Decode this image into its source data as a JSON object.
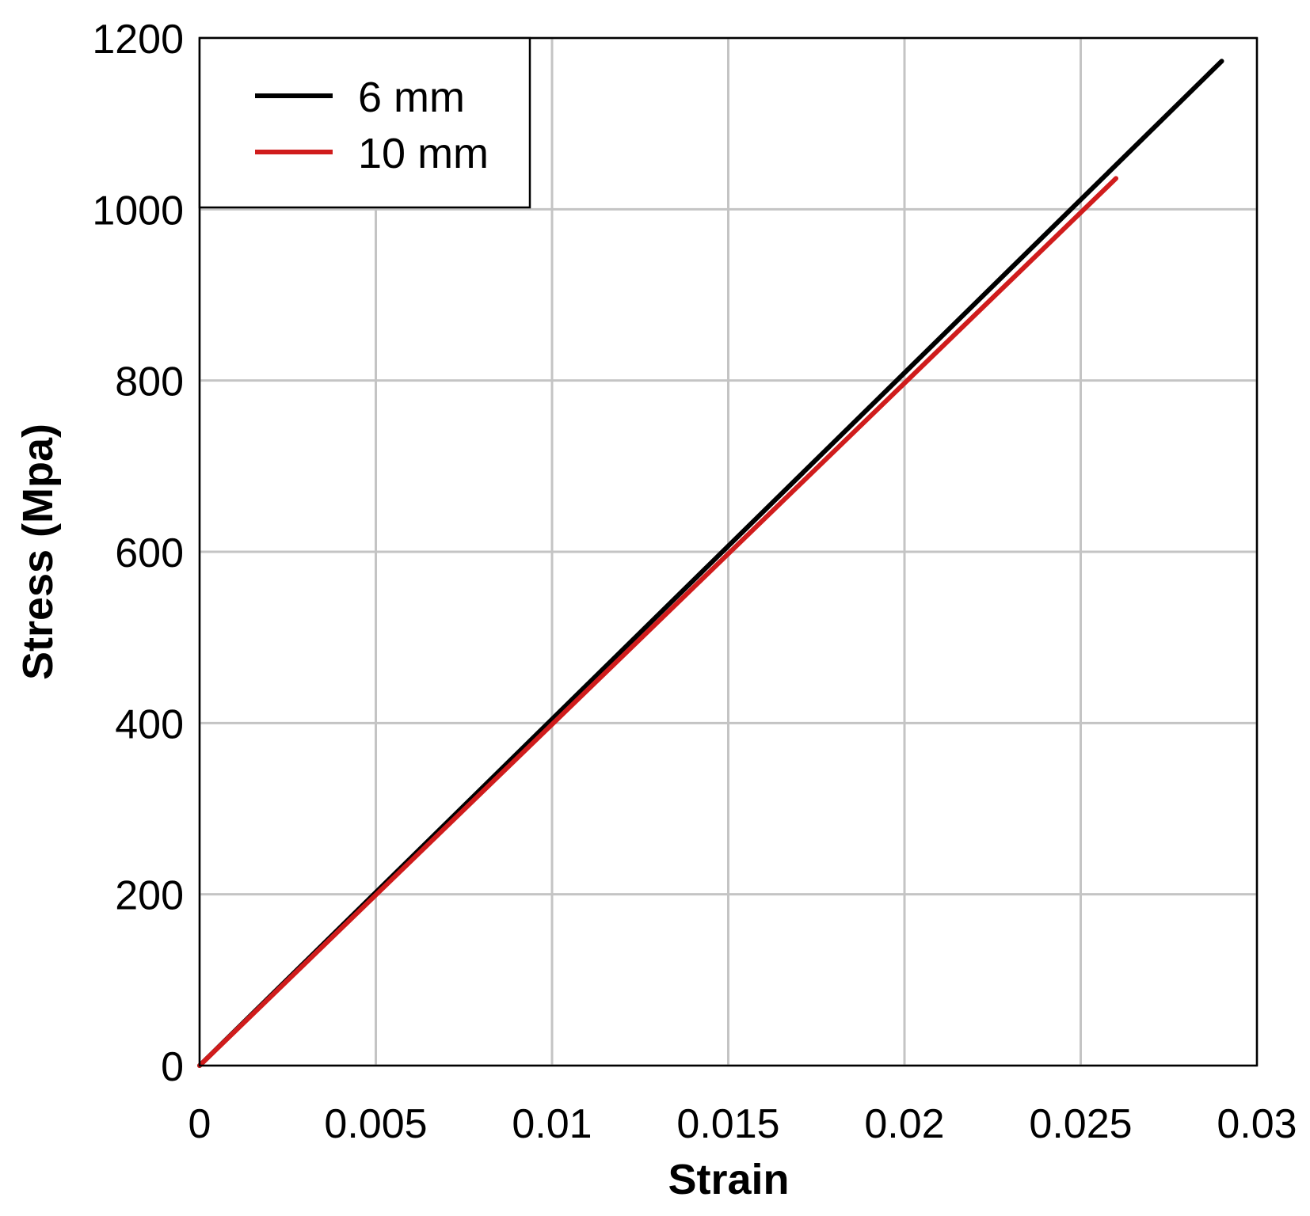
{
  "chart_data": {
    "type": "line",
    "title": "",
    "xlabel": "Strain",
    "ylabel": "Stress (Mpa)",
    "xlim": [
      0,
      0.03
    ],
    "ylim": [
      0,
      1200
    ],
    "xticks": [
      "0",
      "0.005",
      "0.01",
      "0.015",
      "0.02",
      "0.025",
      "0.03"
    ],
    "yticks": [
      "0",
      "200",
      "400",
      "600",
      "800",
      "1000",
      "1200"
    ],
    "grid": true,
    "legend_position": "top-left",
    "series": [
      {
        "name": "6 mm",
        "color": "#000000",
        "x": [
          0,
          0.029
        ],
        "y": [
          0,
          1173
        ]
      },
      {
        "name": "10 mm",
        "color": "#d01c1c",
        "x": [
          0,
          0.026
        ],
        "y": [
          0,
          1036
        ]
      }
    ]
  }
}
